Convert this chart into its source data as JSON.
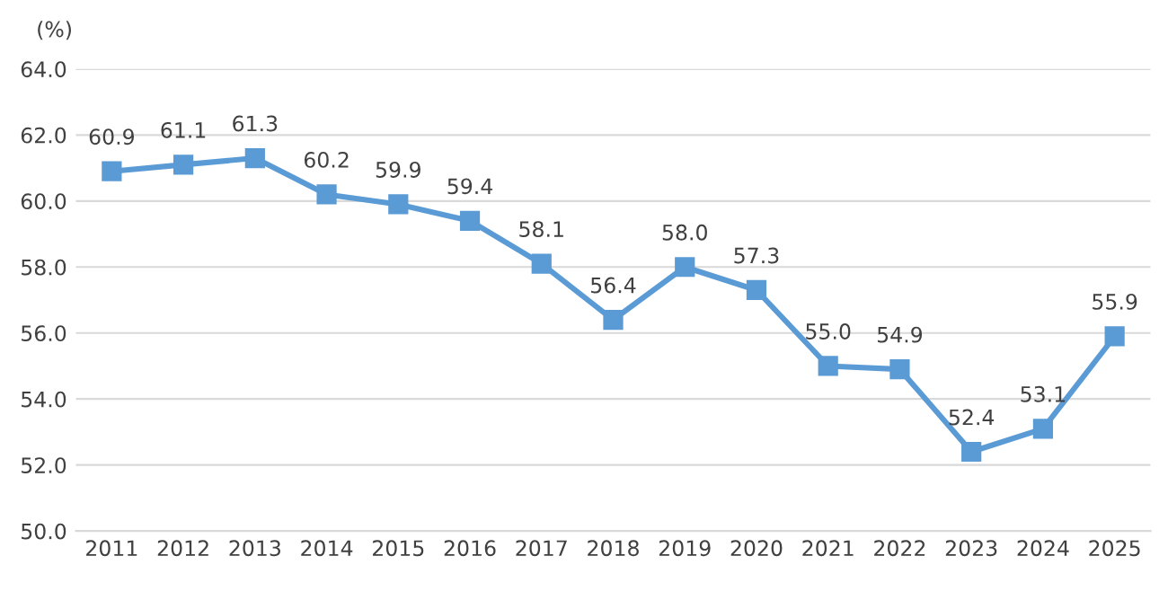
{
  "chart_data": {
    "type": "line",
    "ylabel": "(%)",
    "categories": [
      "2011",
      "2012",
      "2013",
      "2014",
      "2015",
      "2016",
      "2017",
      "2018",
      "2019",
      "2020",
      "2021",
      "2022",
      "2023",
      "2024",
      "2025"
    ],
    "series": [
      {
        "color": "#5b9bd5",
        "values": [
          60.9,
          61.1,
          61.3,
          60.2,
          59.9,
          59.4,
          58.1,
          56.4,
          58.0,
          57.3,
          55.0,
          54.9,
          52.4,
          53.1,
          55.9
        ],
        "value_labels": [
          "60.9",
          "61.1",
          "61.3",
          "60.2",
          "59.9",
          "59.4",
          "58.1",
          "56.4",
          "58.0",
          "57.3",
          "55.0",
          "54.9",
          "52.4",
          "53.1",
          "55.9"
        ]
      }
    ],
    "ylim": [
      50,
      64
    ],
    "yticks": [
      {
        "value": 50,
        "label": "50.0"
      },
      {
        "value": 52,
        "label": "52.0"
      },
      {
        "value": 54,
        "label": "54.0"
      },
      {
        "value": 56,
        "label": "56.0"
      },
      {
        "value": 58,
        "label": "58.0"
      },
      {
        "value": 60,
        "label": "60.0"
      },
      {
        "value": 62,
        "label": "62.0"
      },
      {
        "value": 64,
        "label": "64.0"
      }
    ],
    "grid": "y",
    "marker": "square",
    "line_style": "solid",
    "legend": false
  }
}
